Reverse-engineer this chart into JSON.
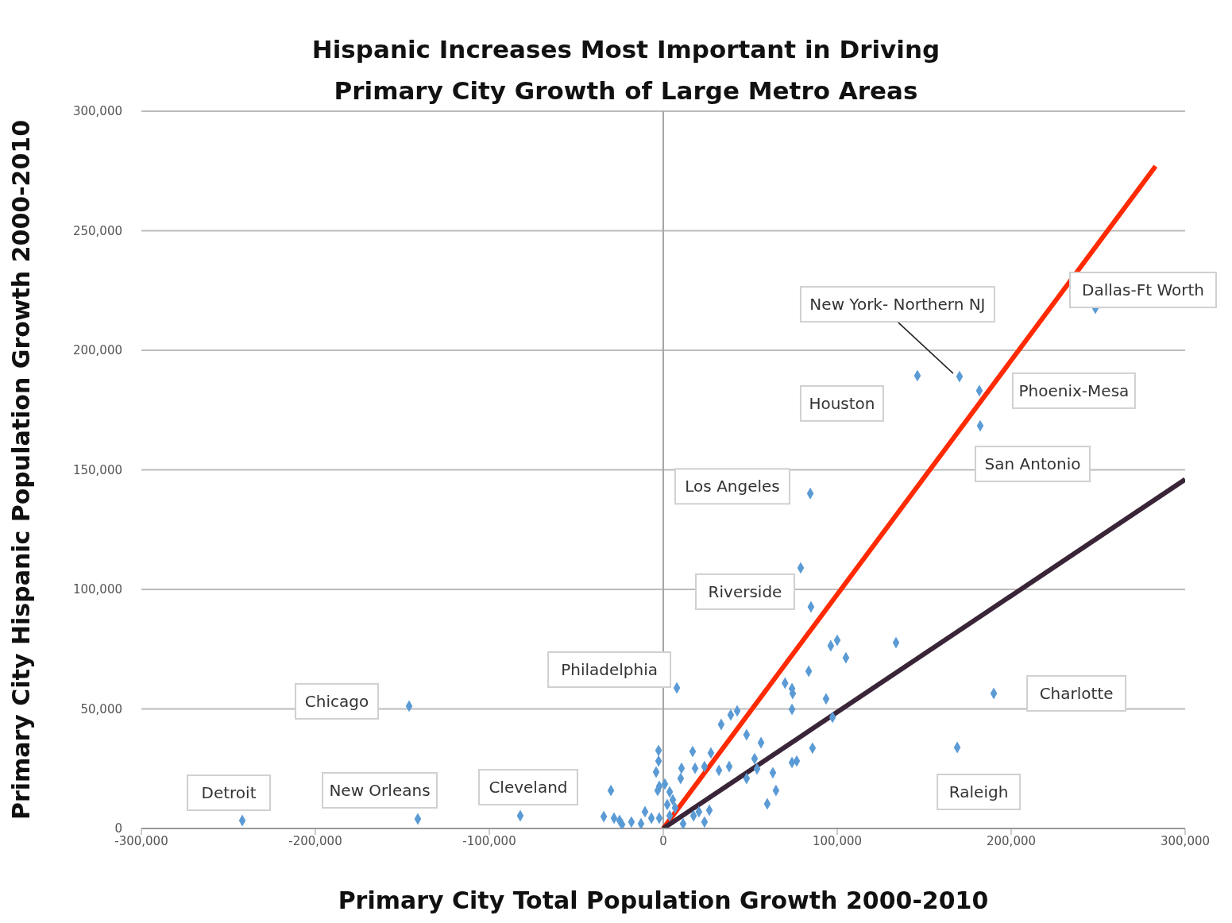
{
  "chart_data": {
    "type": "scatter",
    "title": "Hispanic Increases Most Important in Driving Primary City Growth of Large Metro Areas",
    "xlabel": "Primary City Total Population Growth 2000-2010",
    "ylabel": "Primary City Hispanic Population Growth 2000-2010",
    "xlim": [
      -300000,
      300000
    ],
    "ylim": [
      0,
      300000
    ],
    "xticks": [
      {
        "value": -300000,
        "label": "-300,000"
      },
      {
        "value": -200000,
        "label": "-200,000"
      },
      {
        "value": -100000,
        "label": "-100,000"
      },
      {
        "value": 0,
        "label": "0"
      },
      {
        "value": 100000,
        "label": "100,000"
      },
      {
        "value": 200000,
        "label": "200,000"
      },
      {
        "value": 300000,
        "label": "300,000"
      }
    ],
    "yticks": [
      {
        "value": 0,
        "label": "0"
      },
      {
        "value": 50000,
        "label": "50,000"
      },
      {
        "value": 100000,
        "label": "100,000"
      },
      {
        "value": 150000,
        "label": "150,000"
      },
      {
        "value": 200000,
        "label": "200,000"
      },
      {
        "value": 250000,
        "label": "250,000"
      },
      {
        "value": 300000,
        "label": "300,000"
      }
    ],
    "grid": "y",
    "ref_lines": [
      {
        "axis": "x",
        "value": 0,
        "color": "#a6a6a6"
      }
    ],
    "series": [
      {
        "marker": "diamond",
        "color": "#5b9bd5",
        "x": [
          248400,
          170300,
          146100,
          181700,
          182200,
          84500,
          79000,
          84900,
          96300,
          100000,
          105000,
          133800,
          83600,
          190000,
          169000,
          93600,
          97300,
          7800,
          -146100,
          -242000,
          -141100,
          -82200,
          74000,
          70000,
          74000,
          74400,
          33300,
          38800,
          42500,
          47900,
          56200,
          -2700,
          -2700,
          -4100,
          16900,
          27400,
          10500,
          18300,
          23700,
          10000,
          32000,
          37900,
          52500,
          53900,
          63000,
          47900,
          85800,
          74000,
          76700,
          64800,
          59800,
          -30100,
          -2300,
          900,
          3700,
          5500,
          6800,
          2300,
          -3200,
          -10500,
          -34200,
          -28300,
          -25100,
          -23700,
          -18300,
          -12800,
          -6800,
          -2300,
          11400,
          17400,
          23700,
          26500,
          20500,
          3700
        ],
        "values": [
          217600,
          189000,
          189400,
          183100,
          168400,
          140100,
          109000,
          92700,
          76400,
          78700,
          71400,
          77700,
          65800,
          56500,
          33900,
          54200,
          46500,
          58800,
          51200,
          3300,
          4000,
          5300,
          49800,
          60800,
          58500,
          56500,
          43500,
          47500,
          49200,
          39200,
          35900,
          32600,
          28200,
          23600,
          32200,
          31600,
          25200,
          25200,
          25900,
          20900,
          24300,
          25900,
          29200,
          24900,
          23300,
          20900,
          33600,
          27600,
          28200,
          15900,
          10300,
          15900,
          17600,
          18600,
          15300,
          12000,
          8600,
          10000,
          15900,
          7000,
          5000,
          4300,
          3300,
          1700,
          2700,
          2000,
          4300,
          4300,
          2000,
          5300,
          2700,
          7600,
          7000,
          5300
        ]
      },
      {
        "type": "line",
        "marker": "none",
        "color": "#ff2a00",
        "x": [
          0,
          283000
        ],
        "values": [
          0,
          277000
        ]
      },
      {
        "type": "line",
        "marker": "none",
        "color": "#3a2538",
        "x": [
          0,
          300000
        ],
        "values": [
          0,
          146000
        ]
      }
    ],
    "annotations": [
      {
        "text": "Dallas-Ft Worth",
        "x": 248400,
        "y": 217600
      },
      {
        "text": "New York- Northern NJ",
        "x": 170300,
        "y": 189000
      },
      {
        "text": "Houston",
        "x": 146100,
        "y": 189400
      },
      {
        "text": "Phoenix-Mesa",
        "x": 181700,
        "y": 183100
      },
      {
        "text": "San Antonio",
        "x": 182200,
        "y": 168400
      },
      {
        "text": "Los Angeles",
        "x": 84500,
        "y": 140100
      },
      {
        "text": "Riverside",
        "x": 79000,
        "y": 109000
      },
      {
        "text": "Philadelphia",
        "x": 7800,
        "y": 58800
      },
      {
        "text": "Chicago",
        "x": -146100,
        "y": 51200
      },
      {
        "text": "Detroit",
        "x": -242000,
        "y": 3300
      },
      {
        "text": "New Orleans",
        "x": -141100,
        "y": 4000
      },
      {
        "text": "Cleveland",
        "x": -82200,
        "y": 5300
      },
      {
        "text": "Charlotte",
        "x": 190000,
        "y": 56500
      },
      {
        "text": "Raleigh",
        "x": 169000,
        "y": 33900
      }
    ]
  }
}
